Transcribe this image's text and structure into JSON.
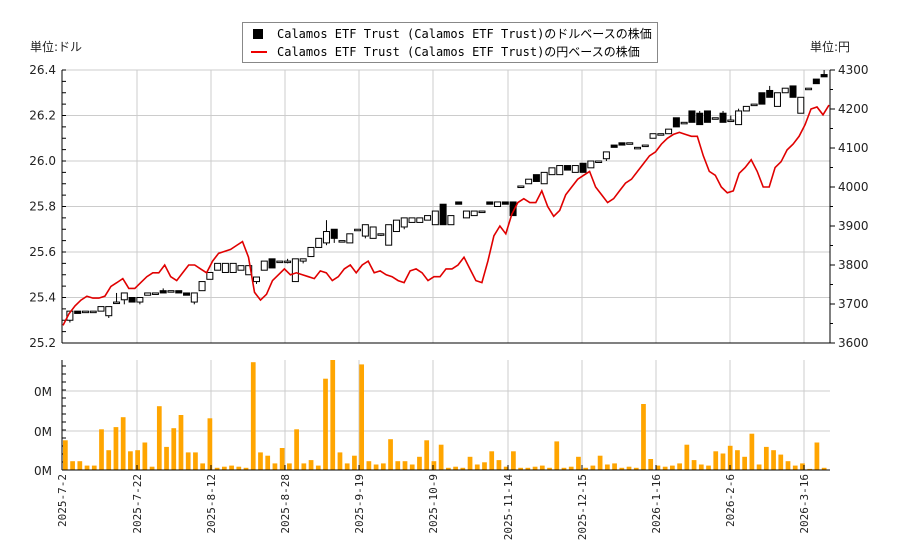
{
  "legend": {
    "series_usd": "Calamos ETF Trust (Calamos ETF Trust)のドルベースの株価",
    "series_jpy": "Calamos ETF Trust (Calamos ETF Trust)の円ベースの株価"
  },
  "units": {
    "left": "単位:ドル",
    "right": "単位:円"
  },
  "colors": {
    "candle": "#000000",
    "jpy_line": "#e00000",
    "volume": "#ffa500",
    "grid": "#cccccc"
  },
  "chart_data": [
    {
      "type": "candlestick+line",
      "title": "",
      "ylabel_left": "単位:ドル",
      "ylabel_right": "単位:円",
      "ylim_left": [
        25.2,
        26.4
      ],
      "ylim_right": [
        3600,
        4300
      ],
      "yticks_left": [
        "25.2",
        "25.4",
        "25.6",
        "25.8",
        "26.0",
        "26.2",
        "26.4"
      ],
      "yticks_right": [
        "3600",
        "3700",
        "3800",
        "3900",
        "4000",
        "4100",
        "4200",
        "4300"
      ],
      "xticks": [
        "2025-7-2",
        "2025-7-22",
        "2025-8-12",
        "2025-8-28",
        "2025-9-19",
        "2025-10-9",
        "2025-11-14",
        "2025-12-15",
        "2026-1-16",
        "2026-2-6",
        "2026-3-16"
      ],
      "legend": [
        "Calamos ETF Trust (Calamos ETF Trust)のドルベースの株価",
        "Calamos ETF Trust (Calamos ETF Trust)の円ベースの株価"
      ],
      "grid": true,
      "candles_usd": [
        [
          25.3,
          25.34,
          25.29,
          25.34
        ],
        [
          25.34,
          25.34,
          25.33,
          25.33
        ],
        [
          25.34,
          25.34,
          25.34,
          25.34
        ],
        [
          25.34,
          25.34,
          25.34,
          25.34
        ],
        [
          25.34,
          25.36,
          25.34,
          25.36
        ],
        [
          25.32,
          25.36,
          25.31,
          25.36
        ],
        [
          25.38,
          25.42,
          25.38,
          25.38
        ],
        [
          25.39,
          25.42,
          25.37,
          25.42
        ],
        [
          25.4,
          25.4,
          25.38,
          25.38
        ],
        [
          25.38,
          25.4,
          25.37,
          25.4
        ],
        [
          25.41,
          25.42,
          25.41,
          25.42
        ],
        [
          25.42,
          25.42,
          25.42,
          25.42
        ],
        [
          25.43,
          25.44,
          25.42,
          25.42
        ],
        [
          25.43,
          25.43,
          25.43,
          25.43
        ],
        [
          25.43,
          25.43,
          25.42,
          25.42
        ],
        [
          25.42,
          25.42,
          25.41,
          25.41
        ],
        [
          25.38,
          25.42,
          25.37,
          25.42
        ],
        [
          25.43,
          25.47,
          25.43,
          25.47
        ],
        [
          25.48,
          25.51,
          25.48,
          25.51
        ],
        [
          25.52,
          25.55,
          25.52,
          25.55
        ],
        [
          25.51,
          25.55,
          25.51,
          25.55
        ],
        [
          25.51,
          25.55,
          25.51,
          25.55
        ],
        [
          25.52,
          25.54,
          25.52,
          25.54
        ],
        [
          25.5,
          25.54,
          25.5,
          25.54
        ],
        [
          25.47,
          25.49,
          25.46,
          25.49
        ],
        [
          25.52,
          25.56,
          25.52,
          25.56
        ],
        [
          25.57,
          25.57,
          25.53,
          25.53
        ],
        [
          25.56,
          25.56,
          25.56,
          25.56
        ],
        [
          25.56,
          25.57,
          25.55,
          25.56
        ],
        [
          25.47,
          25.57,
          25.47,
          25.57
        ],
        [
          25.56,
          25.57,
          25.55,
          25.57
        ],
        [
          25.58,
          25.62,
          25.58,
          25.62
        ],
        [
          25.62,
          25.66,
          25.62,
          25.66
        ],
        [
          25.64,
          25.74,
          25.63,
          25.69
        ],
        [
          25.7,
          25.7,
          25.64,
          25.66
        ],
        [
          25.65,
          25.65,
          25.65,
          25.65
        ],
        [
          25.64,
          25.68,
          25.64,
          25.68
        ],
        [
          25.7,
          25.7,
          25.7,
          25.7
        ],
        [
          25.67,
          25.72,
          25.66,
          25.72
        ],
        [
          25.66,
          25.71,
          25.66,
          25.71
        ],
        [
          25.68,
          25.68,
          25.67,
          25.68
        ],
        [
          25.63,
          25.72,
          25.63,
          25.72
        ],
        [
          25.69,
          25.74,
          25.69,
          25.74
        ],
        [
          25.71,
          25.75,
          25.7,
          25.75
        ],
        [
          25.73,
          25.75,
          25.73,
          25.75
        ],
        [
          25.73,
          25.75,
          25.73,
          25.75
        ],
        [
          25.74,
          25.76,
          25.74,
          25.76
        ],
        [
          25.72,
          25.78,
          25.72,
          25.78
        ],
        [
          25.81,
          25.81,
          25.72,
          25.72
        ],
        [
          25.72,
          25.76,
          25.72,
          25.76
        ],
        [
          25.82,
          25.82,
          25.81,
          25.81
        ],
        [
          25.75,
          25.78,
          25.75,
          25.78
        ],
        [
          25.76,
          25.78,
          25.76,
          25.78
        ],
        [
          25.78,
          25.78,
          25.78,
          25.78
        ],
        [
          25.82,
          25.82,
          25.81,
          25.81
        ],
        [
          25.8,
          25.82,
          25.8,
          25.82
        ],
        [
          25.82,
          25.82,
          25.81,
          25.81
        ],
        [
          25.82,
          25.82,
          25.76,
          25.76
        ],
        [
          25.89,
          25.89,
          25.89,
          25.89
        ],
        [
          25.9,
          25.92,
          25.9,
          25.92
        ],
        [
          25.94,
          25.94,
          25.91,
          25.91
        ],
        [
          25.9,
          25.95,
          25.9,
          25.95
        ],
        [
          25.94,
          25.97,
          25.94,
          25.97
        ],
        [
          25.94,
          25.98,
          25.94,
          25.98
        ],
        [
          25.98,
          25.98,
          25.96,
          25.96
        ],
        [
          25.95,
          25.98,
          25.95,
          25.98
        ],
        [
          25.99,
          25.99,
          25.95,
          25.95
        ],
        [
          25.97,
          26.0,
          25.97,
          26.0
        ],
        [
          26.0,
          26.0,
          26.0,
          26.0
        ],
        [
          26.01,
          26.04,
          26.0,
          26.04
        ],
        [
          26.07,
          26.07,
          26.06,
          26.06
        ],
        [
          26.08,
          26.08,
          26.07,
          26.07
        ],
        [
          26.08,
          26.08,
          26.08,
          26.08
        ],
        [
          26.06,
          26.06,
          26.06,
          26.06
        ],
        [
          26.07,
          26.07,
          26.07,
          26.07
        ],
        [
          26.1,
          26.12,
          26.1,
          26.12
        ],
        [
          26.12,
          26.12,
          26.12,
          26.12
        ],
        [
          26.12,
          26.14,
          26.12,
          26.14
        ],
        [
          26.19,
          26.19,
          26.15,
          26.15
        ],
        [
          26.17,
          26.17,
          26.17,
          26.17
        ],
        [
          26.22,
          26.22,
          26.17,
          26.17
        ],
        [
          26.21,
          26.22,
          26.16,
          26.16
        ],
        [
          26.22,
          26.22,
          26.17,
          26.17
        ],
        [
          26.19,
          26.19,
          26.19,
          26.19
        ],
        [
          26.21,
          26.22,
          26.17,
          26.17
        ],
        [
          26.18,
          26.2,
          26.18,
          26.18
        ],
        [
          26.16,
          26.23,
          26.16,
          26.22
        ],
        [
          26.22,
          26.24,
          26.22,
          26.24
        ],
        [
          26.25,
          26.25,
          26.25,
          26.25
        ],
        [
          26.3,
          26.3,
          26.25,
          26.25
        ],
        [
          26.31,
          26.33,
          26.28,
          26.28
        ],
        [
          26.24,
          26.3,
          26.24,
          26.3
        ],
        [
          26.3,
          26.32,
          26.3,
          26.32
        ],
        [
          26.33,
          26.33,
          26.28,
          26.28
        ],
        [
          26.21,
          26.28,
          26.21,
          26.28
        ],
        [
          26.32,
          26.32,
          26.32,
          26.32
        ],
        [
          26.36,
          26.36,
          26.34,
          26.34
        ],
        [
          26.38,
          26.4,
          26.37,
          26.37
        ]
      ],
      "line_jpy": [
        3645,
        3675,
        3695,
        3710,
        3720,
        3715,
        3715,
        3720,
        3745,
        3755,
        3765,
        3740,
        3740,
        3755,
        3770,
        3780,
        3780,
        3800,
        3770,
        3760,
        3780,
        3800,
        3800,
        3790,
        3780,
        3810,
        3830,
        3835,
        3840,
        3850,
        3860,
        3820,
        3730,
        3710,
        3725,
        3760,
        3775,
        3790,
        3775,
        3780,
        3775,
        3770,
        3765,
        3785,
        3780,
        3760,
        3770,
        3790,
        3800,
        3780,
        3800,
        3810,
        3780,
        3785,
        3775,
        3770,
        3760,
        3755,
        3785,
        3790,
        3780,
        3760,
        3770,
        3770,
        3790,
        3790,
        3800,
        3820,
        3790,
        3760,
        3755,
        3810,
        3875,
        3900,
        3880,
        3930,
        3960,
        3970,
        3960,
        3960,
        3990,
        3950,
        3925,
        3940,
        3980,
        4000,
        4020,
        4030,
        4040,
        4000,
        3980,
        3960,
        3970,
        3990,
        4010,
        4020,
        4040,
        4060,
        4080,
        4090,
        4110,
        4125,
        4135,
        4140,
        4135,
        4130,
        4130,
        4080,
        4040,
        4030,
        4000,
        3985,
        3990,
        4035,
        4050,
        4070,
        4040,
        4000,
        4000,
        4050,
        4065,
        4095,
        4110,
        4130,
        4160,
        4200,
        4205,
        4185,
        4210
      ],
      "volume": {
        "ytick_labels": [
          "0M",
          "0M",
          "0M"
        ],
        "bars": [
          0.27,
          0.08,
          0.08,
          0.04,
          0.04,
          0.37,
          0.18,
          0.39,
          0.48,
          0.17,
          0.18,
          0.25,
          0.03,
          0.58,
          0.21,
          0.38,
          0.5,
          0.16,
          0.16,
          0.06,
          0.47,
          0.02,
          0.03,
          0.04,
          0.03,
          0.02,
          0.98,
          0.16,
          0.13,
          0.06,
          0.2,
          0.06,
          0.37,
          0.06,
          0.09,
          0.04,
          0.83,
          1.0,
          0.16,
          0.06,
          0.13,
          0.96,
          0.08,
          0.05,
          0.06,
          0.28,
          0.08,
          0.08,
          0.05,
          0.12,
          0.27,
          0.08,
          0.23,
          0.02,
          0.03,
          0.02,
          0.12,
          0.05,
          0.07,
          0.17,
          0.09,
          0.03,
          0.17,
          0.02,
          0.02,
          0.03,
          0.04,
          0.02,
          0.26,
          0.02,
          0.03,
          0.12,
          0.02,
          0.04,
          0.13,
          0.05,
          0.06,
          0.02,
          0.03,
          0.02,
          0.6,
          0.1,
          0.04,
          0.03,
          0.04,
          0.06,
          0.23,
          0.09,
          0.05,
          0.04,
          0.17,
          0.15,
          0.22,
          0.18,
          0.12,
          0.33,
          0.05,
          0.21,
          0.18,
          0.14,
          0.08,
          0.04,
          0.06,
          0.01,
          0.25,
          0.02
        ]
      }
    }
  ]
}
